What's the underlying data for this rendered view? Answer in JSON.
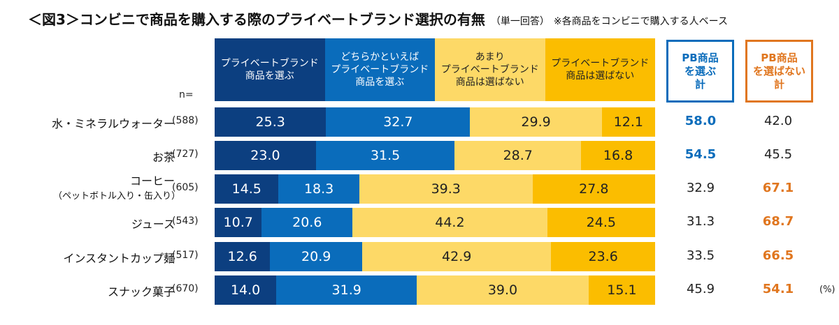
{
  "chart_data": {
    "type": "stacked-bar-horizontal",
    "title": "＜図3＞コンビニで商品を購入する際のプライベートブランド選択の有無",
    "subtitle": "（単一回答）",
    "note": "※各商品をコンビニで購入する人ベース",
    "n_label": "n=",
    "unit": "(%)",
    "colors": [
      "#0c3f80",
      "#0a6cbb",
      "#fdd967",
      "#fbbd00"
    ],
    "text_colors": [
      "#ffffff",
      "#ffffff",
      "#222222",
      "#222222"
    ],
    "accent_blue": "#0a6cbb",
    "accent_orange": "#e0761f",
    "series": [
      {
        "name": "プライベートブランド\n商品を選ぶ"
      },
      {
        "name": "どちらかといえば\nプライベートブランド\n商品を選ぶ"
      },
      {
        "name": "あまり\nプライベートブランド\n商品は選ばない"
      },
      {
        "name": "プライベートブランド\n商品は選ばない"
      }
    ],
    "total_headers": [
      "PB商品\nを選ぶ\n計",
      "PB商品\nを選ばない\n計"
    ],
    "categories": [
      {
        "label": "水・ミネラルウォーター",
        "sublabel": "",
        "n": "(588)",
        "values": [
          25.3,
          32.7,
          29.9,
          12.1
        ],
        "totals": [
          "58.0",
          "42.0"
        ],
        "highlight": 0
      },
      {
        "label": "お茶",
        "sublabel": "",
        "n": "(727)",
        "values": [
          23.0,
          31.5,
          28.7,
          16.8
        ],
        "totals": [
          "54.5",
          "45.5"
        ],
        "highlight": 0
      },
      {
        "label": "コーヒー",
        "sublabel": "（ペットボトル入り・缶入り）",
        "n": "(605)",
        "values": [
          14.5,
          18.3,
          39.3,
          27.8
        ],
        "totals": [
          "32.9",
          "67.1"
        ],
        "highlight": 1
      },
      {
        "label": "ジュース",
        "sublabel": "",
        "n": "(543)",
        "values": [
          10.7,
          20.6,
          44.2,
          24.5
        ],
        "totals": [
          "31.3",
          "68.7"
        ],
        "highlight": 1
      },
      {
        "label": "インスタントカップ麺",
        "sublabel": "",
        "n": "(517)",
        "values": [
          12.6,
          20.9,
          42.9,
          23.6
        ],
        "totals": [
          "33.5",
          "66.5"
        ],
        "highlight": 1
      },
      {
        "label": "スナック菓子",
        "sublabel": "",
        "n": "(670)",
        "values": [
          14.0,
          31.9,
          39.0,
          15.1
        ],
        "totals": [
          "45.9",
          "54.1"
        ],
        "highlight": 1
      }
    ]
  }
}
